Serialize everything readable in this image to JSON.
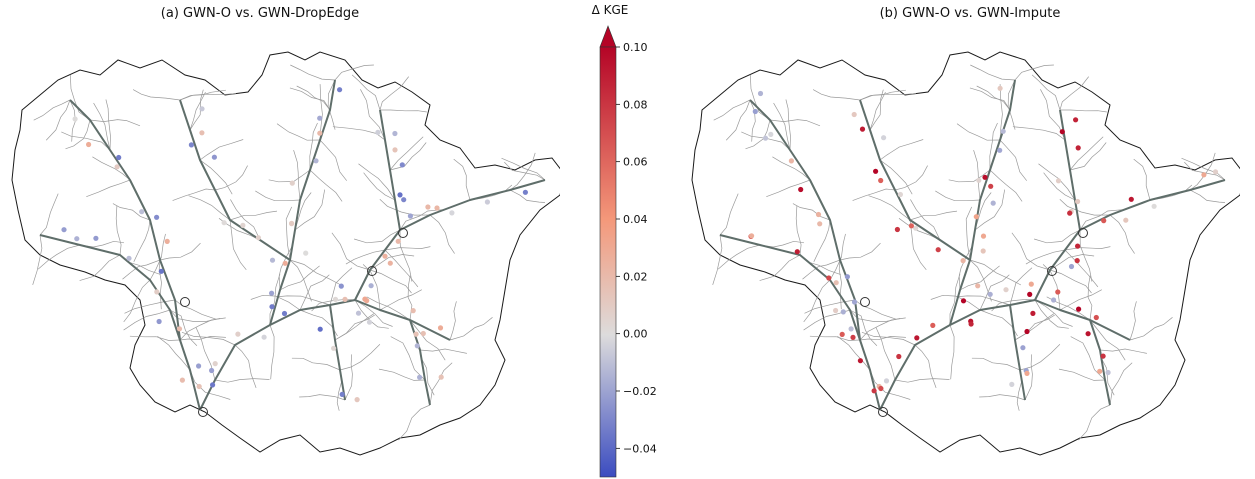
{
  "panels": [
    {
      "title": "(a) GWN-O vs. GWN-DropEdge"
    },
    {
      "title": "(b) GWN-O vs. GWN-Impute"
    }
  ],
  "colorbar": {
    "label": "Δ KGE",
    "min": -0.05,
    "max": 0.1,
    "ticks": [
      {
        "value": 0.1,
        "label": "0.10"
      },
      {
        "value": 0.08,
        "label": "0.08"
      },
      {
        "value": 0.06,
        "label": "0.06"
      },
      {
        "value": 0.04,
        "label": "0.04"
      },
      {
        "value": 0.02,
        "label": "0.02"
      },
      {
        "value": 0.0,
        "label": "0.00"
      },
      {
        "value": -0.02,
        "label": "−0.02"
      },
      {
        "value": -0.04,
        "label": "−0.04"
      }
    ],
    "extend": "max",
    "colormap": "coolwarm"
  },
  "colors": {
    "basin_outline": "#1a1a1a",
    "major_river": "#5f6e6a",
    "minor_river": "#9a9a9a",
    "outlet_marker": "#333333"
  }
}
